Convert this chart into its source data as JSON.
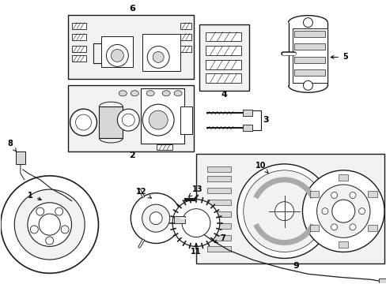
{
  "background_color": "#ffffff",
  "figsize": [
    4.89,
    3.6
  ],
  "dpi": 100,
  "line_color": "#1a1a1a",
  "light_gray": "#d8d8d8",
  "box_fill": "#f2f2f2"
}
